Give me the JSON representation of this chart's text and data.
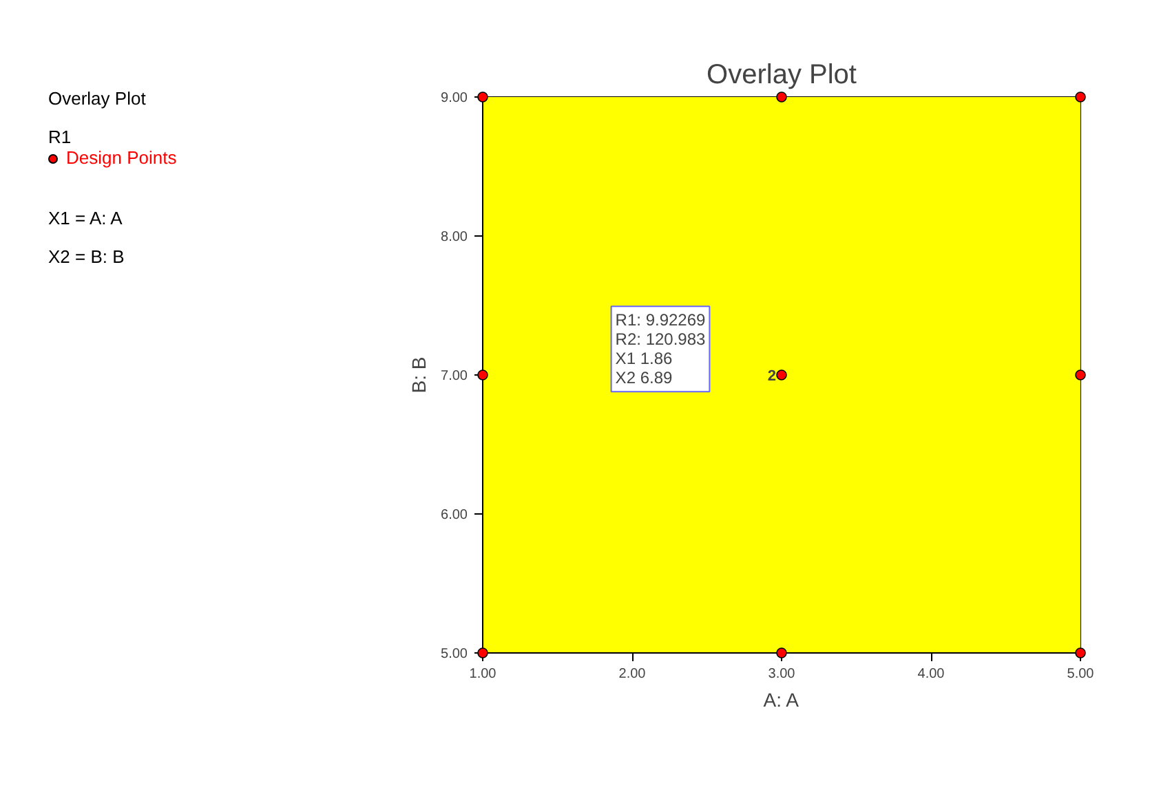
{
  "chart_data": {
    "type": "scatter",
    "title": "Overlay Plot",
    "xlabel": "A: A",
    "ylabel": "B: B",
    "x": [
      1,
      3,
      5,
      1,
      3,
      5,
      1,
      3,
      5
    ],
    "series": [
      {
        "name": "Design Points",
        "color": "#ff0000",
        "values": [
          9,
          9,
          9,
          7,
          7,
          7,
          5,
          5,
          5
        ]
      }
    ],
    "xlim": [
      1,
      5
    ],
    "ylim": [
      5,
      9
    ],
    "xticks": [
      {
        "value": 1,
        "label": "1.00"
      },
      {
        "value": 2,
        "label": "2.00"
      },
      {
        "value": 3,
        "label": "3.00"
      },
      {
        "value": 4,
        "label": "4.00"
      },
      {
        "value": 5,
        "label": "5.00"
      }
    ],
    "yticks": [
      {
        "value": 5,
        "label": "5.00"
      },
      {
        "value": 6,
        "label": "6.00"
      },
      {
        "value": 7,
        "label": "7.00"
      },
      {
        "value": 8,
        "label": "8.00"
      },
      {
        "value": 9,
        "label": "9.00"
      }
    ],
    "bands": [
      {
        "axis": "x",
        "from": 1,
        "to": 5,
        "color": "#ffff00"
      }
    ],
    "annotations": [
      "Overlay Plot",
      "R1",
      "X1 = A: A",
      "X2 = B: B",
      {
        "text": "2",
        "x": 3,
        "y": 7
      },
      "R1: 9.92269\nR2: 120.983\nX1 1.86\nX2 6.89"
    ],
    "legend": "left",
    "marker": "circle"
  }
}
